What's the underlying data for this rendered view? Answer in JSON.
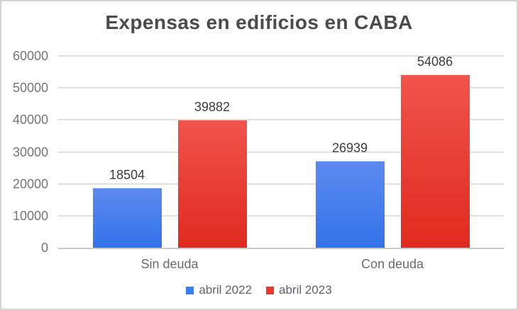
{
  "chart_data": {
    "type": "bar",
    "title": "Expensas en edificios en CABA",
    "categories": [
      "Sin deuda",
      "Con deuda"
    ],
    "series": [
      {
        "name": "abril 2022",
        "color": "#3b7ef0",
        "color_top": "#5d8af0",
        "color_bottom": "#3273e9",
        "values": [
          18504,
          26939
        ]
      },
      {
        "name": "abril 2023",
        "color": "#e8392c",
        "color_top": "#f0544b",
        "color_bottom": "#e02a1f",
        "values": [
          39882,
          54086
        ]
      }
    ],
    "xlabel": "",
    "ylabel": "",
    "ylim": [
      0,
      60000
    ],
    "yticks": [
      0,
      10000,
      20000,
      30000,
      40000,
      50000,
      60000
    ],
    "grid": true,
    "value_labels": true,
    "legend_position": "bottom"
  }
}
